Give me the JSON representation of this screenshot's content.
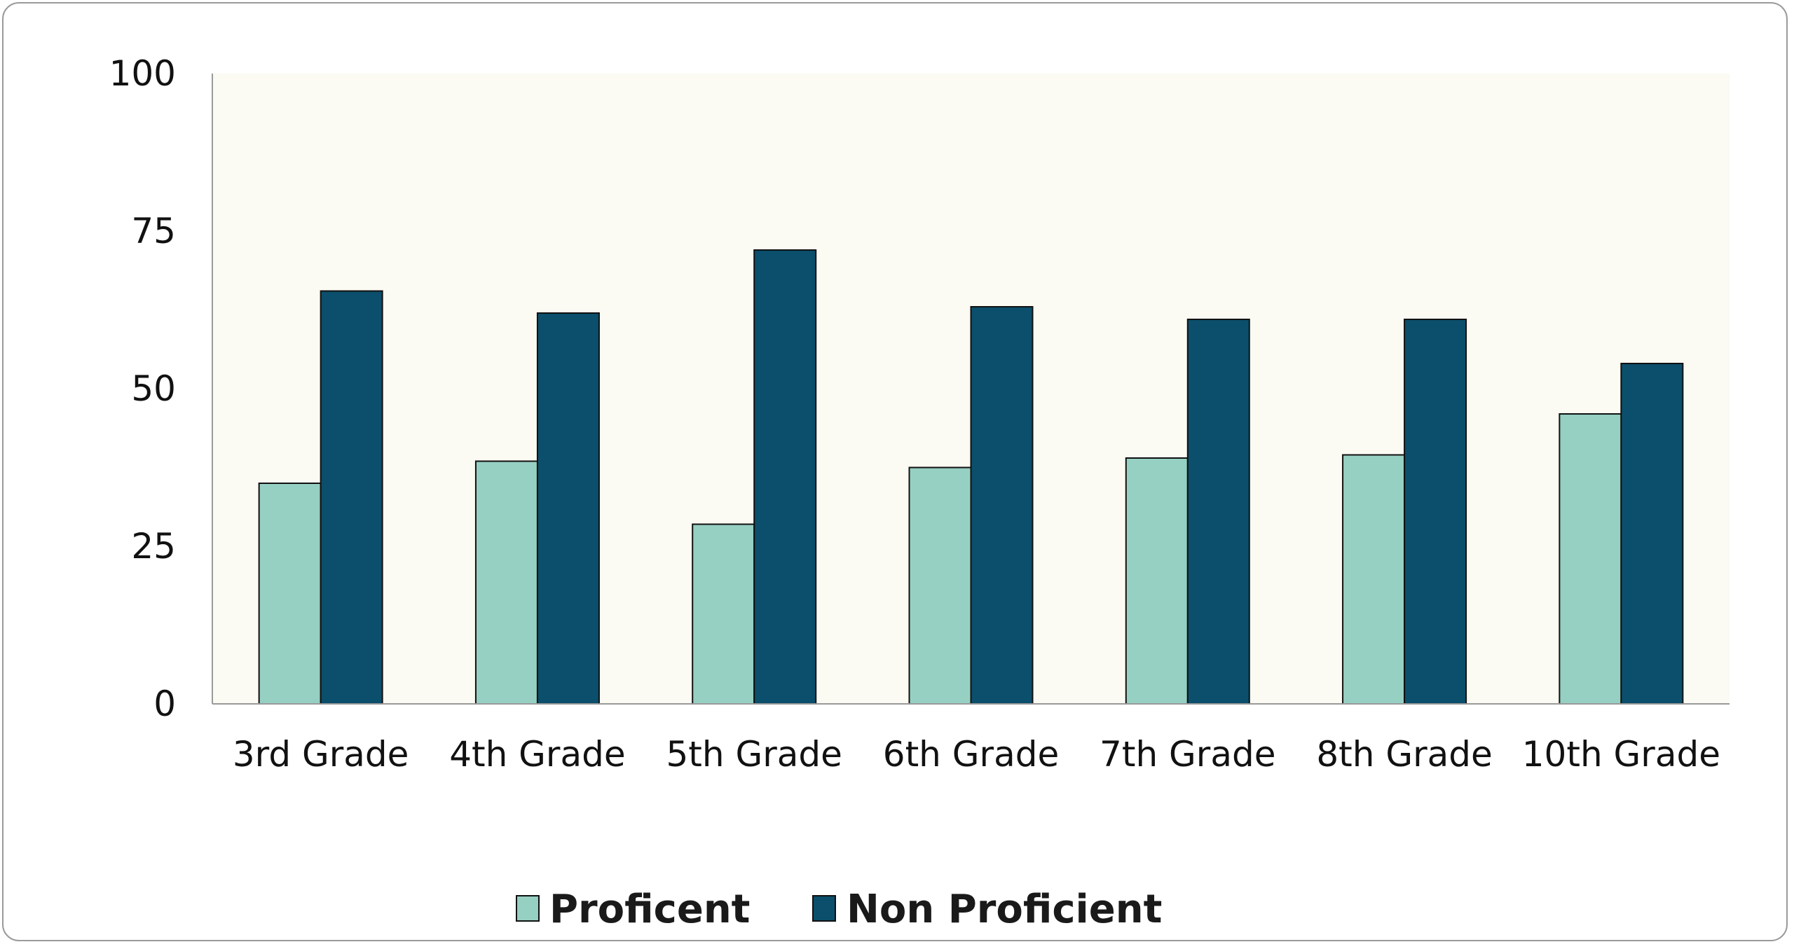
{
  "chart_data": {
    "type": "bar",
    "categories": [
      "3rd Grade",
      "4th Grade",
      "5th Grade",
      "6th Grade",
      "7th Grade",
      "8th Grade",
      "10th Grade"
    ],
    "series": [
      {
        "name": "Proficent",
        "color": "#96d0c2",
        "values": [
          35,
          38.5,
          28.5,
          37.5,
          39,
          39.5,
          46
        ]
      },
      {
        "name": "Non Proficient",
        "color": "#0b4f6c",
        "values": [
          65.5,
          62,
          72,
          63,
          61,
          61,
          54
        ]
      }
    ],
    "y_ticks": [
      "0",
      "25",
      "50",
      "75",
      "100"
    ],
    "ylim": [
      0,
      100
    ],
    "title": "",
    "xlabel": "",
    "ylabel": "",
    "grid": false,
    "legend_position": "bottom",
    "plot_background": "#fbfaf3"
  }
}
